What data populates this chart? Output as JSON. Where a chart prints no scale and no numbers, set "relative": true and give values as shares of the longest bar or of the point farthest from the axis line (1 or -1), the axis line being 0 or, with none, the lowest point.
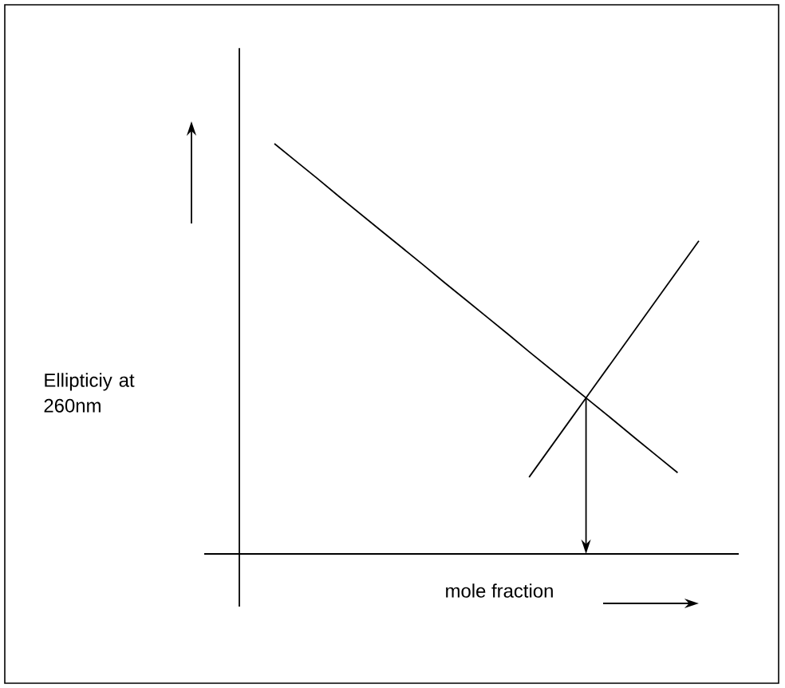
{
  "chart_data": {
    "type": "line",
    "relative": true,
    "xlabel": "mole fraction",
    "annotations": [
      "Ellipticiy at 260nm"
    ],
    "categories": [
      null,
      null,
      null,
      null,
      null,
      null,
      null,
      null,
      null,
      null,
      null,
      null,
      null,
      null,
      null,
      null,
      null,
      null,
      null,
      null,
      null
    ],
    "series": [
      {
        "color": "#000000",
        "values": [
          1,
          0.958,
          0.916,
          0.873,
          0.831,
          0.789,
          0.747,
          0.705,
          0.662,
          0.62,
          0.578,
          0.536,
          0.493,
          0.451,
          0.409,
          0.367,
          0.325,
          0.282,
          0.24,
          0.198,
          null
        ]
      },
      {
        "color": "#000000",
        "values": [
          null,
          null,
          null,
          null,
          null,
          null,
          null,
          null,
          null,
          null,
          null,
          null,
          0.187,
          0.259,
          0.331,
          0.403,
          0.475,
          0.547,
          0.619,
          0.691,
          0.763
        ]
      }
    ]
  }
}
